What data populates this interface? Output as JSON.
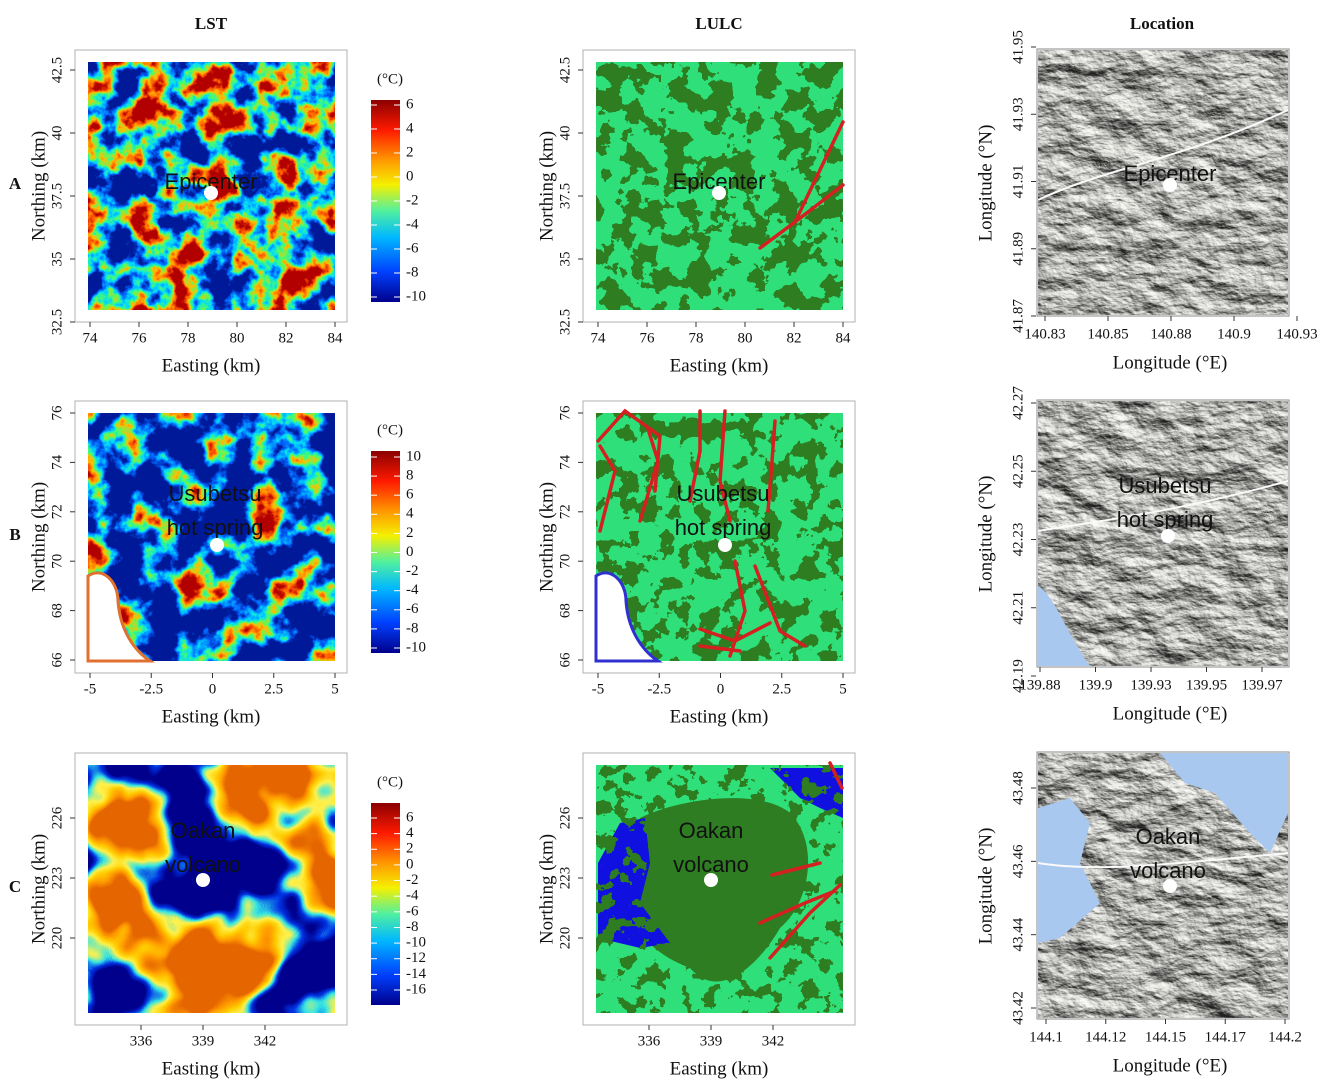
{
  "column_titles": [
    "LST",
    "LULC",
    "Location"
  ],
  "rows": [
    {
      "label": "A",
      "annotation": [
        "Epicenter"
      ],
      "lst": {
        "x_label": "Easting (km)",
        "y_label": "Northing (km)",
        "xticks": [
          "74",
          "76",
          "78",
          "80",
          "82",
          "84"
        ],
        "yticks": [
          "32.5",
          "35",
          "37.5",
          "40",
          "42.5"
        ],
        "unit": "(°C)",
        "colorbar_ticks": [
          "6",
          "4",
          "2",
          "0",
          "-2",
          "-4",
          "-6",
          "-8",
          "-10"
        ]
      },
      "lulc": {
        "x_label": "Easting (km)",
        "y_label": "Northing (km)",
        "xticks": [
          "74",
          "76",
          "78",
          "80",
          "82",
          "84"
        ],
        "yticks": [
          "32.5",
          "35",
          "37.5",
          "40",
          "42.5"
        ]
      },
      "location": {
        "x_label": "Longitude (°E)",
        "y_label": "Longitude (°N)",
        "xticks": [
          "140.83",
          "140.85",
          "140.88",
          "140.9",
          "140.93"
        ],
        "yticks": [
          "41.87",
          "41.89",
          "41.91",
          "41.93",
          "41.95"
        ]
      }
    },
    {
      "label": "B",
      "annotation": [
        "Usubetsu",
        "hot spring"
      ],
      "lst": {
        "x_label": "Easting (km)",
        "y_label": "Northing (km)",
        "xticks": [
          "-5",
          "-2.5",
          "0",
          "2.5",
          "5"
        ],
        "yticks": [
          "66",
          "68",
          "70",
          "72",
          "74",
          "76"
        ],
        "unit": "(°C)",
        "colorbar_ticks": [
          "10",
          "8",
          "6",
          "4",
          "2",
          "0",
          "-2",
          "-4",
          "-6",
          "-8",
          "-10"
        ]
      },
      "lulc": {
        "x_label": "Easting (km)",
        "y_label": "Northing (km)",
        "xticks": [
          "-5",
          "-2.5",
          "0",
          "2.5",
          "5"
        ],
        "yticks": [
          "66",
          "68",
          "70",
          "72",
          "74",
          "76"
        ]
      },
      "location": {
        "x_label": "Longitude (°E)",
        "y_label": "Longitude (°N)",
        "xticks": [
          "139.88",
          "139.9",
          "139.93",
          "139.95",
          "139.97"
        ],
        "yticks": [
          "42.19",
          "42.21",
          "42.23",
          "42.25",
          "42.27"
        ]
      }
    },
    {
      "label": "C",
      "annotation": [
        "Oakan",
        "volcano"
      ],
      "lst": {
        "x_label": "Easting (km)",
        "y_label": "Northing (km)",
        "xticks": [
          "336",
          "339",
          "342"
        ],
        "yticks": [
          "220",
          "223",
          "226"
        ],
        "unit": "(°C)",
        "colorbar_ticks": [
          "6",
          "4",
          "2",
          "0",
          "-2",
          "-4",
          "-6",
          "-8",
          "-10",
          "-12",
          "-14",
          "-16"
        ]
      },
      "lulc": {
        "x_label": "Easting (km)",
        "y_label": "Northing (km)",
        "xticks": [
          "336",
          "339",
          "342"
        ],
        "yticks": [
          "220",
          "223",
          "226"
        ]
      },
      "location": {
        "x_label": "Longitude (°E)",
        "y_label": "Longitude (°N)",
        "xticks": [
          "144.1",
          "144.12",
          "144.15",
          "144.17",
          "144.2"
        ],
        "yticks": [
          "43.42",
          "43.44",
          "43.46",
          "43.48"
        ]
      }
    }
  ]
}
